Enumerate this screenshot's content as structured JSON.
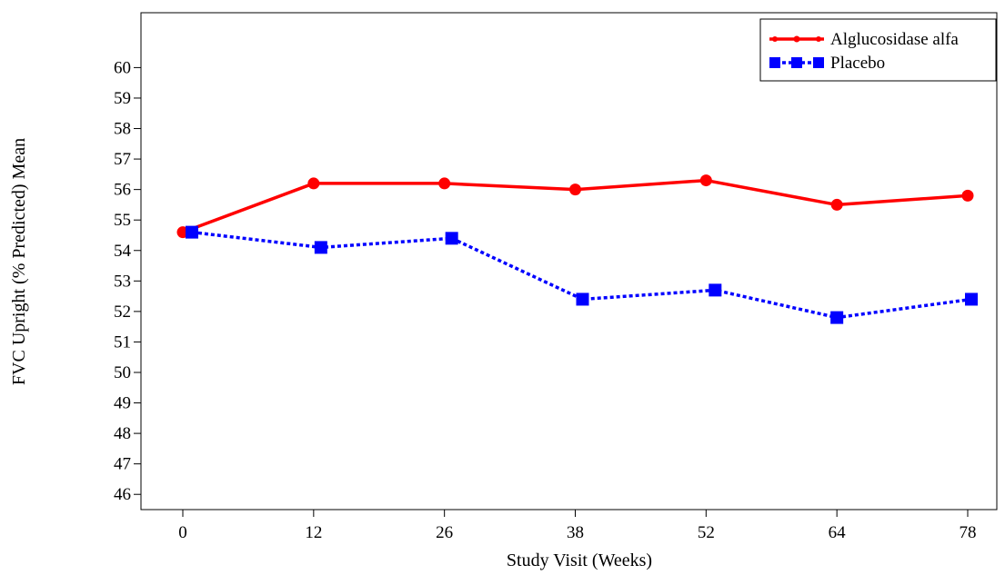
{
  "chart_data": {
    "type": "line",
    "xlabel": "Study Visit (Weeks)",
    "ylabel": "FVC Upright (% Predicted) Mean",
    "x_ticks": [
      "0",
      "12",
      "26",
      "38",
      "52",
      "64",
      "78"
    ],
    "y_ticks": [
      "46",
      "47",
      "48",
      "49",
      "50",
      "51",
      "52",
      "53",
      "54",
      "55",
      "56",
      "57",
      "58",
      "59",
      "60"
    ],
    "ylim": [
      45.5,
      61.8
    ],
    "grid": false,
    "legend_position": "top-right",
    "series": [
      {
        "name": "Alglucosidase alfa",
        "color": "#ff0000",
        "line_style": "solid",
        "marker": "circle",
        "values": [
          54.6,
          56.2,
          56.2,
          56.0,
          56.3,
          55.5,
          55.8
        ]
      },
      {
        "name": "Placebo",
        "color": "#0000ff",
        "line_style": "dotted",
        "marker": "square",
        "values": [
          54.6,
          54.1,
          54.4,
          52.4,
          52.7,
          51.8,
          52.4
        ]
      }
    ]
  }
}
